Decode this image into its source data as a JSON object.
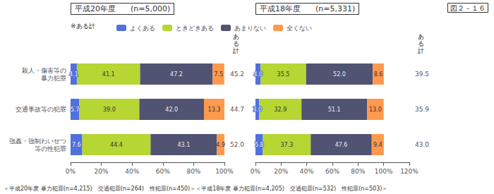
{
  "chart_data": [
    {
      "type": "bar",
      "orientation": "horizontal",
      "stacked": true,
      "data_labels": true,
      "title": "平成20年度",
      "subtitle": "(n=5,000)",
      "categories": [
        "殺人・傷害等の\n暴力犯罪",
        "交通事故等の犯罪",
        "強姦・強制わいせつ\n等の性犯罪"
      ],
      "series": [
        {
          "name": "よくある",
          "values": [
            4.1,
            5.7,
            7.6
          ],
          "value_labels": [
            "4.1",
            "5.7",
            "7.6"
          ]
        },
        {
          "name": "ときどきある",
          "values": [
            41.1,
            39.0,
            44.4
          ],
          "value_labels": [
            "41.1",
            "39.0",
            "44.4"
          ]
        },
        {
          "name": "あまりない",
          "values": [
            47.2,
            42.0,
            43.1
          ],
          "value_labels": [
            "47.2",
            "42.0",
            "43.1"
          ]
        },
        {
          "name": "全くない",
          "values": [
            7.5,
            13.3,
            4.9
          ],
          "value_labels": [
            "7.5",
            "13.3",
            "4.9"
          ]
        }
      ],
      "totals": {
        "title": "あ\nる\n計",
        "values": [
          45.2,
          44.7,
          52.0
        ],
        "value_labels": [
          "45.2",
          "44.7",
          "52.0"
        ]
      },
      "xlim": [
        0,
        100
      ],
      "xticks": [
        {
          "value": 0,
          "label": "0%"
        },
        {
          "value": 20,
          "label": "20%"
        },
        {
          "value": 40,
          "label": "40%"
        },
        {
          "value": 60,
          "label": "60%"
        },
        {
          "value": 80,
          "label": "80%"
        },
        {
          "value": 100,
          "label": "100%"
        }
      ],
      "grid": false,
      "legend": "top"
    },
    {
      "type": "bar",
      "orientation": "horizontal",
      "stacked": true,
      "data_labels": true,
      "title": "平成18年度",
      "subtitle": "(n=5,331)",
      "categories": [
        "殺人・傷害等の\n暴力犯罪",
        "交通事故等の犯罪",
        "強姦・強制わいせつ\n等の性犯罪"
      ],
      "series": [
        {
          "name": "よくある",
          "values": [
            4.0,
            3.0,
            5.8
          ],
          "value_labels": [
            "4.0",
            "3.0",
            "5.8"
          ]
        },
        {
          "name": "ときどきある",
          "values": [
            35.5,
            32.9,
            37.3
          ],
          "value_labels": [
            "35.5",
            "32.9",
            "37.3"
          ]
        },
        {
          "name": "あまりない",
          "values": [
            52.0,
            51.1,
            47.6
          ],
          "value_labels": [
            "52.0",
            "51.1",
            "47.6"
          ]
        },
        {
          "name": "全くない",
          "values": [
            8.6,
            13.0,
            9.4
          ],
          "value_labels": [
            "8.6",
            "13.0",
            "9.4"
          ]
        }
      ],
      "totals": {
        "title": "あ\nる\n計",
        "values": [
          39.5,
          35.9,
          43.0
        ],
        "value_labels": [
          "39.5",
          "35.9",
          "43.0"
        ]
      },
      "xlim": [
        0,
        120
      ],
      "xticks": [
        {
          "value": 0,
          "label": "0%"
        },
        {
          "value": 20,
          "label": "20%"
        },
        {
          "value": 40,
          "label": "40%"
        },
        {
          "value": 60,
          "label": "60%"
        },
        {
          "value": 80,
          "label": "80%"
        },
        {
          "value": 100,
          "label": "100%"
        },
        {
          "value": 120,
          "label": "120%"
        }
      ],
      "grid": false,
      "legend": "top"
    }
  ],
  "label": "図２－１６",
  "note": "※ある計",
  "footnote": "＜平成20年度 暴力犯罪(n=4,215)　交通犯罪(n=264)　性犯罪(n=450)＞＜平成18年度 暴力犯罪(n=4,205)　交通犯罪(n=532)　性犯罪(n=503)＞"
}
